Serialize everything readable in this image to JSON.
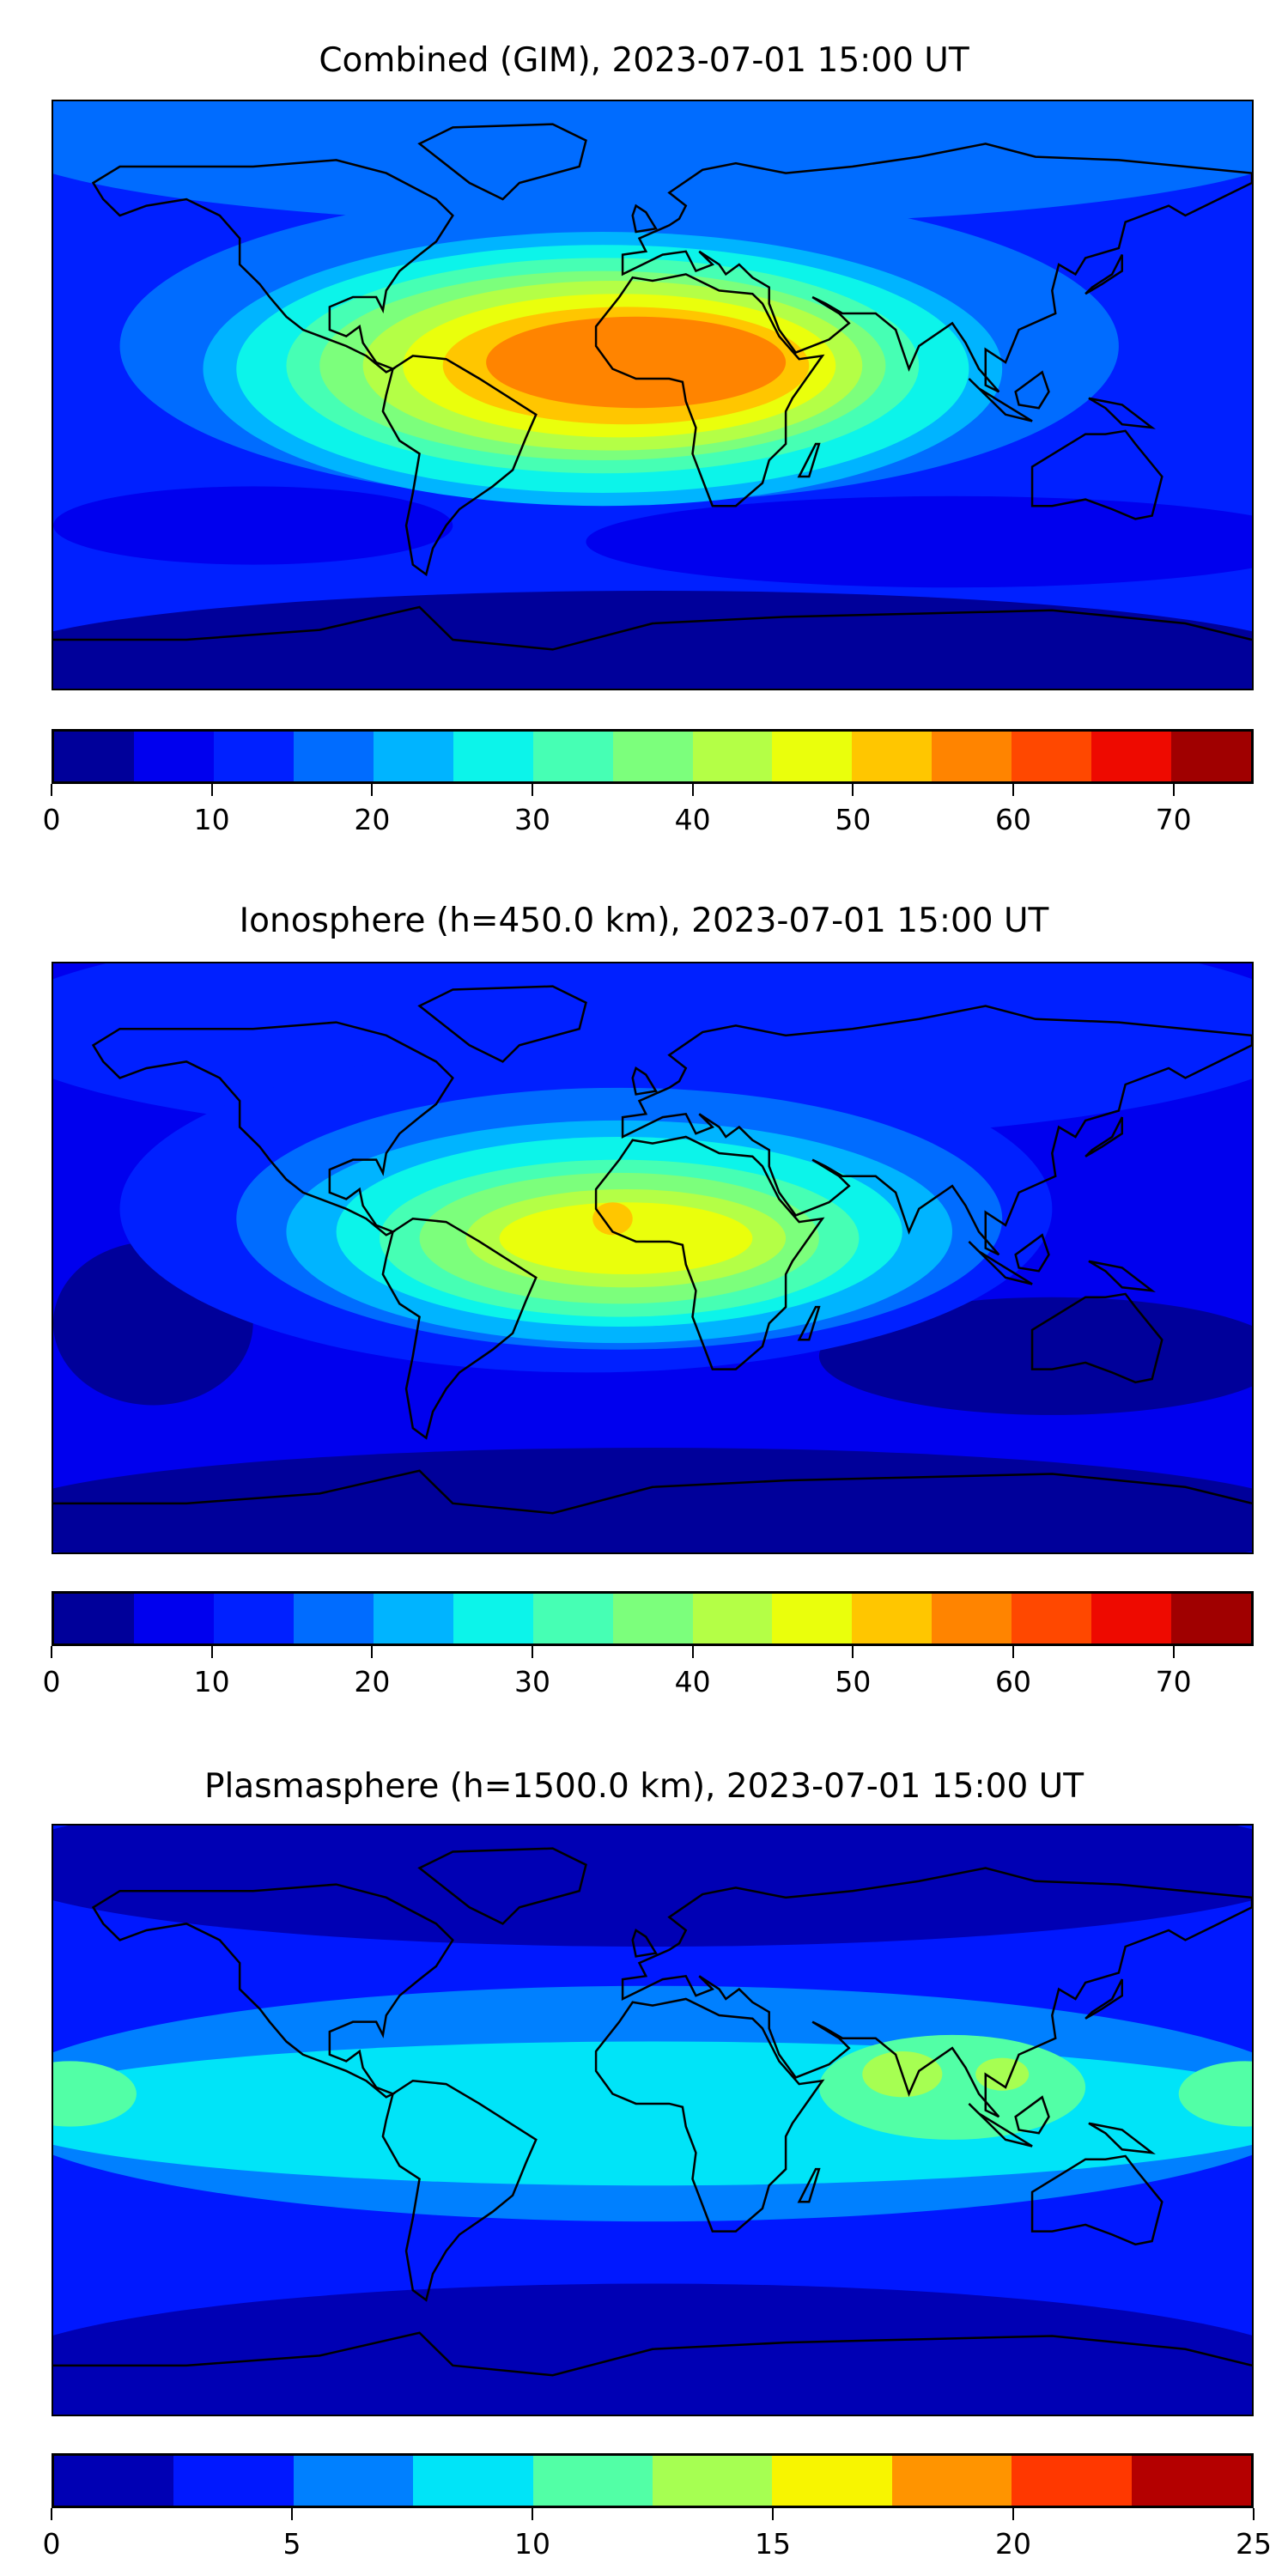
{
  "chart_data": [
    {
      "type": "heatmap",
      "subtype": "filled-contour-map",
      "title": "Combined (GIM), 2023-07-01 15:00 UT",
      "levels": [
        0,
        5,
        10,
        15,
        20,
        25,
        30,
        35,
        40,
        45,
        50,
        55,
        60,
        65,
        70,
        75
      ],
      "colors": [
        "#00009a",
        "#0000ee",
        "#0020ff",
        "#006cff",
        "#00b4ff",
        "#0cf4ea",
        "#46ffb4",
        "#7cff7c",
        "#b4ff46",
        "#eaff0c",
        "#ffc600",
        "#ff8400",
        "#ff4800",
        "#ee0a00",
        "#a00000"
      ],
      "colorbar_ticks": [
        0,
        10,
        20,
        30,
        40,
        50,
        60,
        70
      ],
      "background_level": 2,
      "features": [
        {
          "lon": 0,
          "lat": 80,
          "rx": 200,
          "ry": 28,
          "level": 3
        },
        {
          "lon": 0,
          "lat": -82,
          "rx": 200,
          "ry": 22,
          "level": 0
        },
        {
          "lon": 90,
          "lat": -45,
          "rx": 110,
          "ry": 14,
          "level": 1
        },
        {
          "lon": -120,
          "lat": -40,
          "rx": 60,
          "ry": 12,
          "level": 1
        },
        {
          "lon": -10,
          "lat": 15,
          "rx": 150,
          "ry": 48,
          "level": 3
        },
        {
          "lon": -15,
          "lat": 8,
          "rx": 120,
          "ry": 42,
          "level": 4
        },
        {
          "lon": -15,
          "lat": 8,
          "rx": 110,
          "ry": 38,
          "level": 5
        },
        {
          "lon": -15,
          "lat": 9,
          "rx": 95,
          "ry": 33,
          "level": 6
        },
        {
          "lon": -15,
          "lat": 9,
          "rx": 85,
          "ry": 29,
          "level": 7
        },
        {
          "lon": -12,
          "lat": 9,
          "rx": 75,
          "ry": 26,
          "level": 8
        },
        {
          "lon": -10,
          "lat": 9,
          "rx": 65,
          "ry": 22,
          "level": 9
        },
        {
          "lon": -8,
          "lat": 9,
          "rx": 55,
          "ry": 18,
          "level": 10
        },
        {
          "lon": -5,
          "lat": 10,
          "rx": 45,
          "ry": 14,
          "level": 11
        }
      ]
    },
    {
      "type": "heatmap",
      "subtype": "filled-contour-map",
      "title": "Ionosphere  (h=450.0 km), 2023-07-01 15:00 UT",
      "levels": [
        0,
        5,
        10,
        15,
        20,
        25,
        30,
        35,
        40,
        45,
        50,
        55,
        60,
        65,
        70,
        75
      ],
      "colors": [
        "#00009a",
        "#0000ee",
        "#0020ff",
        "#006cff",
        "#00b4ff",
        "#0cf4ea",
        "#46ffb4",
        "#7cff7c",
        "#b4ff46",
        "#eaff0c",
        "#ffc600",
        "#ff8400",
        "#ff4800",
        "#ee0a00",
        "#a00000"
      ],
      "colorbar_ticks": [
        0,
        10,
        20,
        30,
        40,
        50,
        60,
        70
      ],
      "background_level": 1,
      "features": [
        {
          "lon": 0,
          "lat": 70,
          "rx": 200,
          "ry": 35,
          "level": 2
        },
        {
          "lon": 0,
          "lat": -80,
          "rx": 200,
          "ry": 22,
          "level": 0
        },
        {
          "lon": 120,
          "lat": -30,
          "rx": 70,
          "ry": 18,
          "level": 0
        },
        {
          "lon": -150,
          "lat": -20,
          "rx": 30,
          "ry": 25,
          "level": 0
        },
        {
          "lon": -20,
          "lat": 15,
          "rx": 140,
          "ry": 50,
          "level": 2
        },
        {
          "lon": -10,
          "lat": 12,
          "rx": 115,
          "ry": 40,
          "level": 3
        },
        {
          "lon": -10,
          "lat": 8,
          "rx": 100,
          "ry": 34,
          "level": 4
        },
        {
          "lon": -10,
          "lat": 8,
          "rx": 85,
          "ry": 29,
          "level": 5
        },
        {
          "lon": -10,
          "lat": 6,
          "rx": 72,
          "ry": 24,
          "level": 6
        },
        {
          "lon": -10,
          "lat": 6,
          "rx": 60,
          "ry": 20,
          "level": 7
        },
        {
          "lon": -8,
          "lat": 6,
          "rx": 48,
          "ry": 15,
          "level": 8
        },
        {
          "lon": -8,
          "lat": 6,
          "rx": 38,
          "ry": 11,
          "level": 9
        },
        {
          "lon": -12,
          "lat": 12,
          "rx": 6,
          "ry": 5,
          "level": 10
        }
      ]
    },
    {
      "type": "heatmap",
      "subtype": "filled-contour-map",
      "title": "Plasmasphere (h=1500.0 km), 2023-07-01 15:00 UT",
      "levels": [
        0,
        2.5,
        5,
        7.5,
        10,
        12.5,
        15,
        17.5,
        20,
        22.5,
        25
      ],
      "colors": [
        "#0000b4",
        "#0018ff",
        "#0080ff",
        "#00e4f8",
        "#52ffa6",
        "#a6ff52",
        "#f8f500",
        "#ff9400",
        "#ff3800",
        "#b40000"
      ],
      "colorbar_ticks": [
        0,
        5,
        10,
        15,
        20,
        25
      ],
      "background_level": 1,
      "features": [
        {
          "lon": 0,
          "lat": 78,
          "rx": 200,
          "ry": 25,
          "level": 0
        },
        {
          "lon": 0,
          "lat": -78,
          "rx": 200,
          "ry": 28,
          "level": 0
        },
        {
          "lon": 0,
          "lat": 5,
          "rx": 200,
          "ry": 36,
          "level": 2
        },
        {
          "lon": 0,
          "lat": 2,
          "rx": 200,
          "ry": 22,
          "level": 3
        },
        {
          "lon": 90,
          "lat": 10,
          "rx": 40,
          "ry": 16,
          "level": 4
        },
        {
          "lon": -175,
          "lat": 8,
          "rx": 20,
          "ry": 10,
          "level": 4
        },
        {
          "lon": 178,
          "lat": 8,
          "rx": 20,
          "ry": 10,
          "level": 4
        },
        {
          "lon": 75,
          "lat": 14,
          "rx": 12,
          "ry": 7,
          "level": 5
        },
        {
          "lon": 105,
          "lat": 14,
          "rx": 8,
          "ry": 5,
          "level": 5
        }
      ]
    }
  ]
}
